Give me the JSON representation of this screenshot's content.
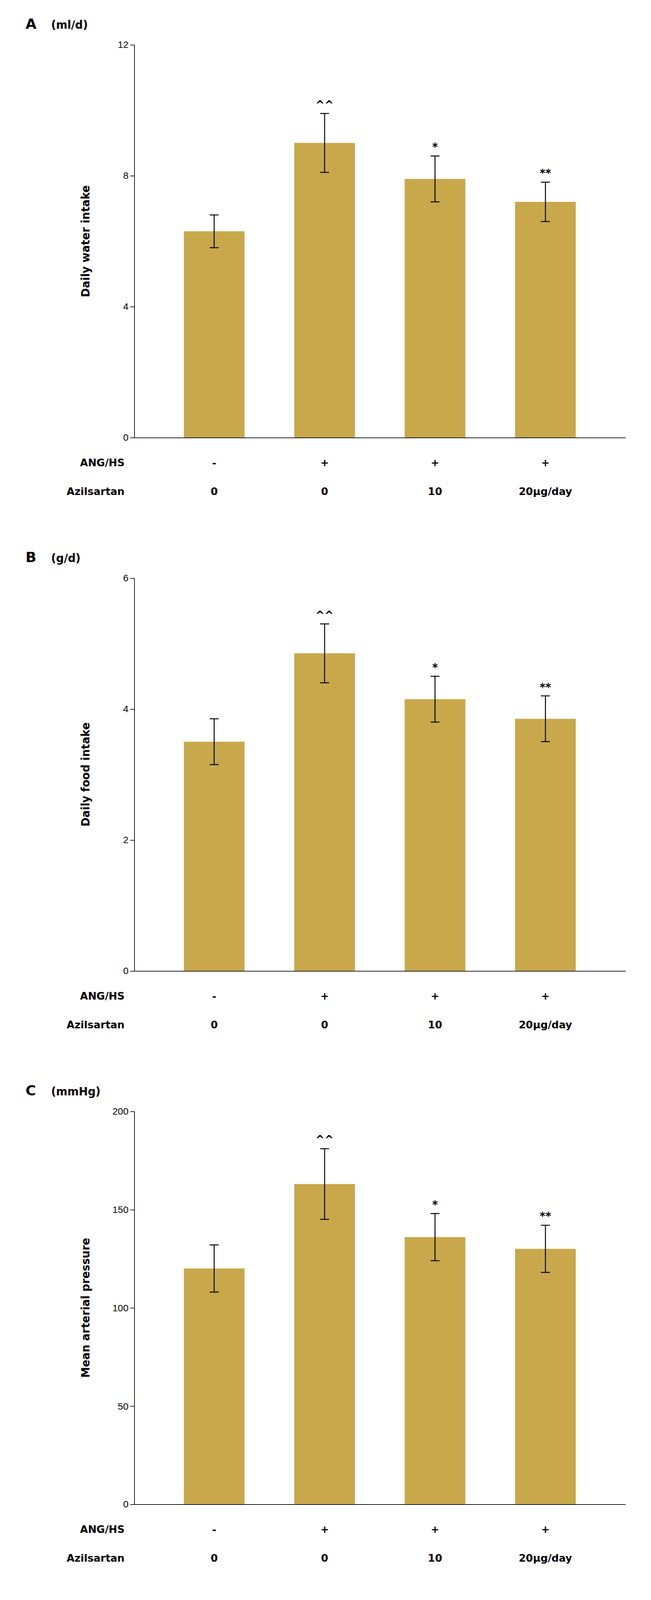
{
  "chart_data": [
    {
      "type": "bar",
      "title": "A",
      "subtitle": "(ml/d)",
      "y_label": "Daily water intake",
      "values": [
        6.3,
        9.0,
        7.9,
        7.2
      ],
      "errors": [
        0.5,
        0.9,
        0.7,
        0.6
      ],
      "annotations": [
        null,
        "^^",
        "*",
        "**"
      ],
      "x_rows": [
        {
          "label": "ANG/HS",
          "values": [
            "-",
            "+",
            "+",
            "+"
          ]
        },
        {
          "label": "Azilsartan",
          "values": [
            "0",
            "0",
            "10",
            "20μg/day"
          ]
        }
      ],
      "color": "#C8A84B",
      "ylim": [
        0,
        12
      ],
      "yticks": [
        0,
        4,
        8,
        12
      ],
      "grid": false,
      "tick_labels": "y"
    },
    {
      "type": "bar",
      "title": "B",
      "subtitle": "(g/d)",
      "y_label": "Daily food intake",
      "values": [
        3.5,
        4.85,
        4.15,
        3.85
      ],
      "errors": [
        0.35,
        0.45,
        0.35,
        0.35
      ],
      "annotations": [
        null,
        "^^",
        "*",
        "**"
      ],
      "x_rows": [
        {
          "label": "ANG/HS",
          "values": [
            "-",
            "+",
            "+",
            "+"
          ]
        },
        {
          "label": "Azilsartan",
          "values": [
            "0",
            "0",
            "10",
            "20μg/day"
          ]
        }
      ],
      "color": "#C8A84B",
      "ylim": [
        0,
        6
      ],
      "yticks": [
        0,
        2,
        4,
        6
      ],
      "grid": false,
      "tick_labels": "y"
    },
    {
      "type": "bar",
      "title": "C",
      "subtitle": "(mmHg)",
      "y_label": "Mean arterial pressure",
      "values": [
        120,
        163,
        136,
        130
      ],
      "errors": [
        12,
        18,
        12,
        12
      ],
      "annotations": [
        null,
        "^^",
        "*",
        "**"
      ],
      "x_rows": [
        {
          "label": "ANG/HS",
          "values": [
            "-",
            "+",
            "+",
            "+"
          ]
        },
        {
          "label": "Azilsartan",
          "values": [
            "0",
            "0",
            "10",
            "20μg/day"
          ]
        }
      ],
      "color": "#C8A84B",
      "ylim": [
        0,
        200
      ],
      "yticks": [
        0,
        50,
        100,
        150,
        200
      ],
      "grid": false,
      "tick_labels": "y"
    }
  ]
}
